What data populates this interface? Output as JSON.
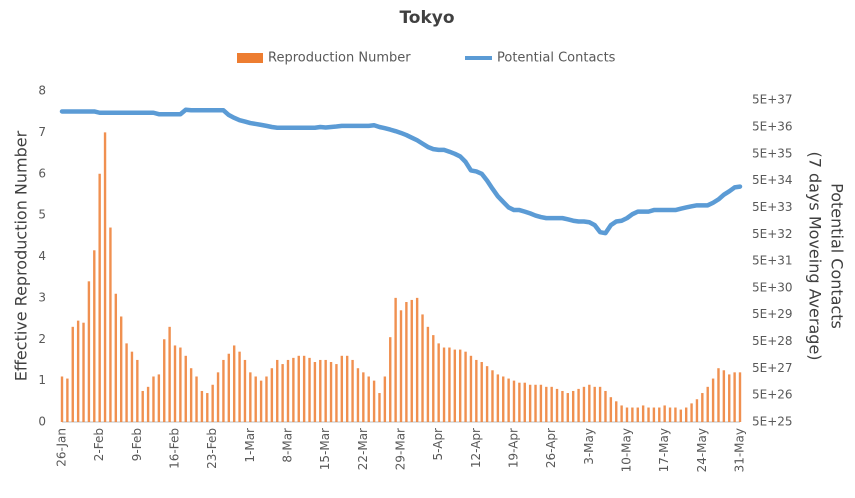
{
  "chart_data": {
    "type": "bar_line",
    "title": "Tokyo",
    "y_label": "Effective Reproduction Number",
    "y2_label": [
      "Potential Contacts",
      "(7 days Moveing Average)"
    ],
    "categories": [
      "26-Jan",
      null,
      null,
      null,
      null,
      null,
      null,
      "2-Feb",
      null,
      null,
      null,
      null,
      null,
      null,
      "9-Feb",
      null,
      null,
      null,
      null,
      null,
      null,
      "16-Feb",
      null,
      null,
      null,
      null,
      null,
      null,
      "23-Feb",
      null,
      null,
      null,
      null,
      null,
      null,
      "1-Mar",
      null,
      null,
      null,
      null,
      null,
      null,
      "8-Mar",
      null,
      null,
      null,
      null,
      null,
      null,
      "15-Mar",
      null,
      null,
      null,
      null,
      null,
      null,
      "22-Mar",
      null,
      null,
      null,
      null,
      null,
      null,
      "29-Mar",
      null,
      null,
      null,
      null,
      null,
      null,
      "5-Apr",
      null,
      null,
      null,
      null,
      null,
      null,
      "12-Apr",
      null,
      null,
      null,
      null,
      null,
      null,
      "19-Apr",
      null,
      null,
      null,
      null,
      null,
      null,
      "26-Apr",
      null,
      null,
      null,
      null,
      null,
      null,
      "3-May",
      null,
      null,
      null,
      null,
      null,
      null,
      "10-May",
      null,
      null,
      null,
      null,
      null,
      null,
      "17-May",
      null,
      null,
      null,
      null,
      null,
      null,
      "24-May",
      null,
      null,
      null,
      null,
      null,
      null,
      "31-May"
    ],
    "series": [
      {
        "name": "Reproduction Number",
        "type": "bar",
        "color": "#ed7d31",
        "values": [
          1.1,
          1.05,
          2.3,
          2.45,
          2.4,
          3.4,
          4.15,
          6.0,
          7.0,
          4.7,
          3.1,
          2.55,
          1.9,
          1.7,
          1.5,
          0.75,
          0.85,
          1.1,
          1.15,
          2.0,
          2.3,
          1.85,
          1.8,
          1.6,
          1.3,
          1.1,
          0.75,
          0.7,
          0.9,
          1.2,
          1.5,
          1.65,
          1.85,
          1.7,
          1.5,
          1.2,
          1.1,
          1.0,
          1.1,
          1.3,
          1.5,
          1.4,
          1.5,
          1.55,
          1.6,
          1.6,
          1.55,
          1.45,
          1.5,
          1.5,
          1.45,
          1.4,
          1.6,
          1.6,
          1.5,
          1.3,
          1.2,
          1.1,
          1.0,
          0.7,
          1.1,
          2.05,
          3.0,
          2.7,
          2.9,
          2.95,
          3.0,
          2.6,
          2.3,
          2.1,
          1.9,
          1.8,
          1.8,
          1.75,
          1.75,
          1.7,
          1.6,
          1.5,
          1.45,
          1.35,
          1.25,
          1.15,
          1.1,
          1.05,
          1.0,
          0.95,
          0.95,
          0.9,
          0.9,
          0.9,
          0.85,
          0.85,
          0.8,
          0.75,
          0.7,
          0.75,
          0.8,
          0.85,
          0.9,
          0.85,
          0.85,
          0.75,
          0.6,
          0.5,
          0.4,
          0.35,
          0.35,
          0.35,
          0.4,
          0.35,
          0.35,
          0.35,
          0.4,
          0.35,
          0.35,
          0.3,
          0.35,
          0.45,
          0.55,
          0.7,
          0.85,
          1.05,
          1.3,
          1.25,
          1.15,
          1.2,
          1.2
        ]
      },
      {
        "name": "Potential Contacts",
        "type": "line",
        "axis": "y2",
        "color": "#5b9bd5",
        "values": [
          1.9e+37,
          1.9e+37,
          1.9e+37,
          1.9e+37,
          1.9e+37,
          1.9e+37,
          1.9e+37,
          1.7e+37,
          1.7e+37,
          1.7e+37,
          1.7e+37,
          1.7e+37,
          1.7e+37,
          1.7e+37,
          1.7e+37,
          1.7e+37,
          1.7e+37,
          1.7e+37,
          1.5e+37,
          1.5e+37,
          1.5e+37,
          1.5e+37,
          1.5e+37,
          2.2e+37,
          2.1e+37,
          2.1e+37,
          2.1e+37,
          2.1e+37,
          2.1e+37,
          2.1e+37,
          2.1e+37,
          1.4e+37,
          1.1e+37,
          9e+36,
          8e+36,
          7e+36,
          6.5e+36,
          6e+36,
          5.5e+36,
          5e+36,
          4.7e+36,
          4.7e+36,
          4.7e+36,
          4.7e+36,
          4.7e+36,
          4.7e+36,
          4.7e+36,
          4.7e+36,
          5e+36,
          4.8e+36,
          5e+36,
          5.2e+36,
          5.5e+36,
          5.5e+36,
          5.5e+36,
          5.5e+36,
          5.5e+36,
          5.5e+36,
          5.8e+36,
          5e+36,
          4.5e+36,
          4e+36,
          3.5e+36,
          3e+36,
          2.5e+36,
          2e+36,
          1.6e+36,
          1.2e+36,
          9e+35,
          7.5e+35,
          7e+35,
          7e+35,
          6e+35,
          5e+35,
          4e+35,
          2.5e+35,
          1.2e+35,
          1.1e+35,
          9e+34,
          5e+34,
          2.5e+34,
          1.3e+34,
          8e+33,
          5e+33,
          4e+33,
          4e+33,
          3.5e+33,
          3e+33,
          2.5e+33,
          2.2e+33,
          2e+33,
          2e+33,
          2e+33,
          2e+33,
          1.8e+33,
          1.6e+33,
          1.5e+33,
          1.5e+33,
          1.4e+33,
          1.1e+33,
          6e+32,
          5.5e+32,
          1.1e+33,
          1.5e+33,
          1.6e+33,
          2e+33,
          2.8e+33,
          3.5e+33,
          3.5e+33,
          3.5e+33,
          4e+33,
          4e+33,
          4e+33,
          4e+33,
          4e+33,
          4.5e+33,
          5e+33,
          5.5e+33,
          6e+33,
          6e+33,
          6e+33,
          7.5e+33,
          1e+34,
          1.5e+34,
          2e+34,
          2.8e+34,
          3e+34
        ]
      }
    ],
    "ylim": [
      0,
      8
    ],
    "yticks": [
      0,
      1,
      2,
      3,
      4,
      5,
      6,
      7,
      8
    ],
    "y2log": true,
    "y2lim": [
      5e+25,
      1.1e+38
    ],
    "y2ticks": [
      {
        "value": 5e+25,
        "label": "5E+25"
      },
      {
        "value": 5e+26,
        "label": "5E+26"
      },
      {
        "value": 5e+27,
        "label": "5E+27"
      },
      {
        "value": 5e+28,
        "label": "5E+28"
      },
      {
        "value": 5e+29,
        "label": "5E+29"
      },
      {
        "value": 5e+30,
        "label": "5E+30"
      },
      {
        "value": 5e+31,
        "label": "5E+31"
      },
      {
        "value": 5e+32,
        "label": "5E+32"
      },
      {
        "value": 5e+33,
        "label": "5E+33"
      },
      {
        "value": 5e+34,
        "label": "5E+34"
      },
      {
        "value": 5e+35,
        "label": "5E+35"
      },
      {
        "value": 5e+36,
        "label": "5E+36"
      },
      {
        "value": 5e+37,
        "label": "5E+37"
      }
    ],
    "grid": false,
    "legend": "top"
  }
}
